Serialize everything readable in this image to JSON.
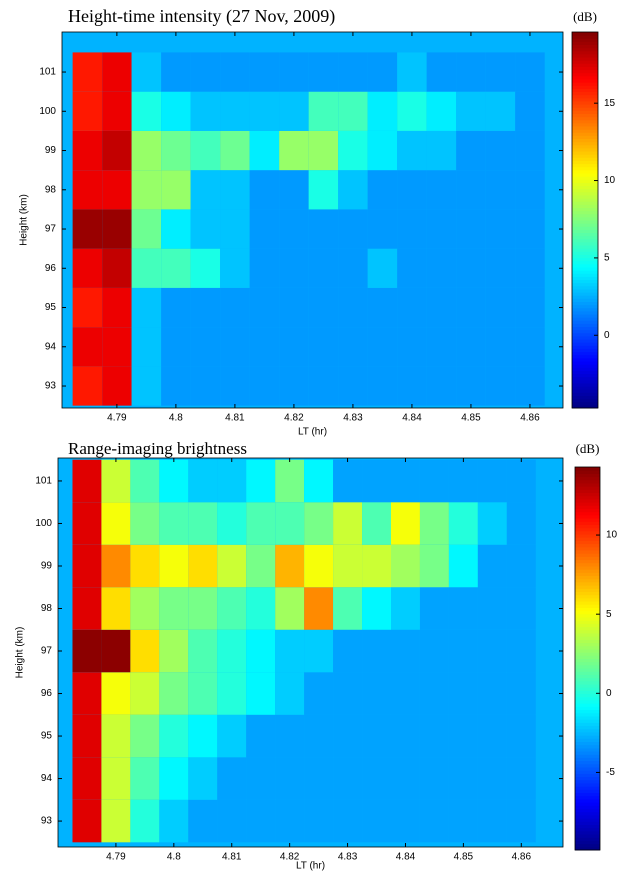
{
  "chart_data": [
    {
      "type": "heatmap",
      "title": "Height-time intensity (27 Nov, 2009)",
      "colorbar_label": "(dB)",
      "xlabel": "LT (hr)",
      "ylabel": "Height (km)",
      "x": [
        4.785,
        4.79,
        4.795,
        4.8,
        4.805,
        4.81,
        4.815,
        4.82,
        4.825,
        4.83,
        4.835,
        4.84,
        4.845,
        4.85,
        4.855,
        4.86
      ],
      "y": [
        93,
        94,
        95,
        96,
        97,
        98,
        99,
        100,
        101
      ],
      "z": [
        [
          16,
          17,
          3,
          2,
          2,
          2,
          2,
          2,
          2,
          2,
          2,
          2,
          2,
          2,
          2,
          2
        ],
        [
          17,
          17,
          3,
          2,
          2,
          2,
          2,
          2,
          2,
          2,
          2,
          2,
          2,
          2,
          2,
          2
        ],
        [
          16,
          17,
          3,
          2,
          2,
          2,
          2,
          2,
          2,
          2,
          2,
          2,
          2,
          2,
          2,
          2
        ],
        [
          17,
          18,
          6,
          6,
          5,
          3,
          2,
          2,
          2,
          2,
          3,
          2,
          2,
          2,
          2,
          2
        ],
        [
          19,
          19,
          7,
          4,
          3,
          3,
          2,
          2,
          2,
          2,
          2,
          2,
          2,
          2,
          2,
          2
        ],
        [
          17,
          17,
          8,
          8,
          3,
          3,
          2,
          2,
          5,
          3,
          2,
          2,
          2,
          2,
          2,
          2
        ],
        [
          17,
          18,
          8,
          7,
          6,
          7,
          4,
          8,
          8,
          5,
          4,
          3,
          3,
          2,
          2,
          2
        ],
        [
          16,
          17,
          5,
          4,
          3,
          3,
          3,
          3,
          6,
          6,
          4,
          5,
          4,
          3,
          3,
          2
        ],
        [
          16,
          17,
          3,
          2,
          2,
          2,
          2,
          2,
          2,
          2,
          2,
          3,
          2,
          2,
          2,
          2
        ]
      ],
      "xlim": [
        4.7807,
        4.8656
      ],
      "ylim": [
        92.44,
        102.02
      ],
      "xticks": [
        4.79,
        4.8,
        4.81,
        4.82,
        4.83,
        4.84,
        4.85,
        4.86
      ],
      "yticks": [
        93,
        94,
        95,
        96,
        97,
        98,
        99,
        100,
        101
      ],
      "clim": [
        -4.7,
        19.6
      ],
      "cticks": [
        0,
        5,
        10,
        15
      ],
      "colormap": "jet"
    },
    {
      "type": "heatmap",
      "title": "Range-imaging brightness",
      "colorbar_label": "(dB)",
      "xlabel": "LT (hr)",
      "ylabel": "Height (km)",
      "x": [
        4.785,
        4.79,
        4.795,
        4.8,
        4.805,
        4.81,
        4.815,
        4.82,
        4.825,
        4.83,
        4.835,
        4.84,
        4.845,
        4.85,
        4.855,
        4.86
      ],
      "y": [
        93,
        94,
        95,
        96,
        97,
        98,
        99,
        100,
        101
      ],
      "z": [
        [
          12,
          4,
          0,
          -2,
          -3,
          -3,
          -3,
          -3,
          -3,
          -3,
          -3,
          -3,
          -3,
          -3,
          -3,
          -3
        ],
        [
          12,
          4,
          1,
          -1,
          -2,
          -3,
          -3,
          -3,
          -3,
          -3,
          -3,
          -3,
          -3,
          -3,
          -3,
          -3
        ],
        [
          12,
          4,
          2,
          0,
          -1,
          -2,
          -3,
          -3,
          -3,
          -3,
          -3,
          -3,
          -3,
          -3,
          -3,
          -3
        ],
        [
          12,
          5,
          4,
          2,
          1,
          0,
          -1,
          -2,
          -3,
          -3,
          -3,
          -3,
          -3,
          -3,
          -3,
          -3
        ],
        [
          14,
          14,
          6,
          3,
          1,
          0,
          -1,
          -2,
          -2,
          -3,
          -3,
          -3,
          -3,
          -3,
          -3,
          -3
        ],
        [
          12,
          6,
          3,
          2,
          2,
          1,
          0,
          3,
          8,
          1,
          -1,
          -2,
          -3,
          -3,
          -3,
          -3
        ],
        [
          12,
          8,
          6,
          5,
          6,
          4,
          2,
          7,
          5,
          4,
          4,
          3,
          2,
          -1,
          -3,
          -3
        ],
        [
          12,
          5,
          2,
          1,
          1,
          0,
          1,
          1,
          2,
          4,
          1,
          5,
          2,
          0,
          -2,
          -3
        ],
        [
          12,
          4,
          1,
          -1,
          -2,
          -2,
          -1,
          2,
          -1,
          -3,
          -3,
          -3,
          -3,
          -3,
          -3,
          -3
        ]
      ],
      "xlim": [
        4.78,
        4.8672
      ],
      "ylim": [
        92.39,
        101.54
      ],
      "xticks": [
        4.79,
        4.8,
        4.81,
        4.82,
        4.83,
        4.84,
        4.85,
        4.86
      ],
      "yticks": [
        93,
        94,
        95,
        96,
        97,
        98,
        99,
        100,
        101
      ],
      "clim": [
        -9.9,
        14.3
      ],
      "cticks": [
        -5,
        0,
        5,
        10
      ],
      "colormap": "jet"
    }
  ]
}
